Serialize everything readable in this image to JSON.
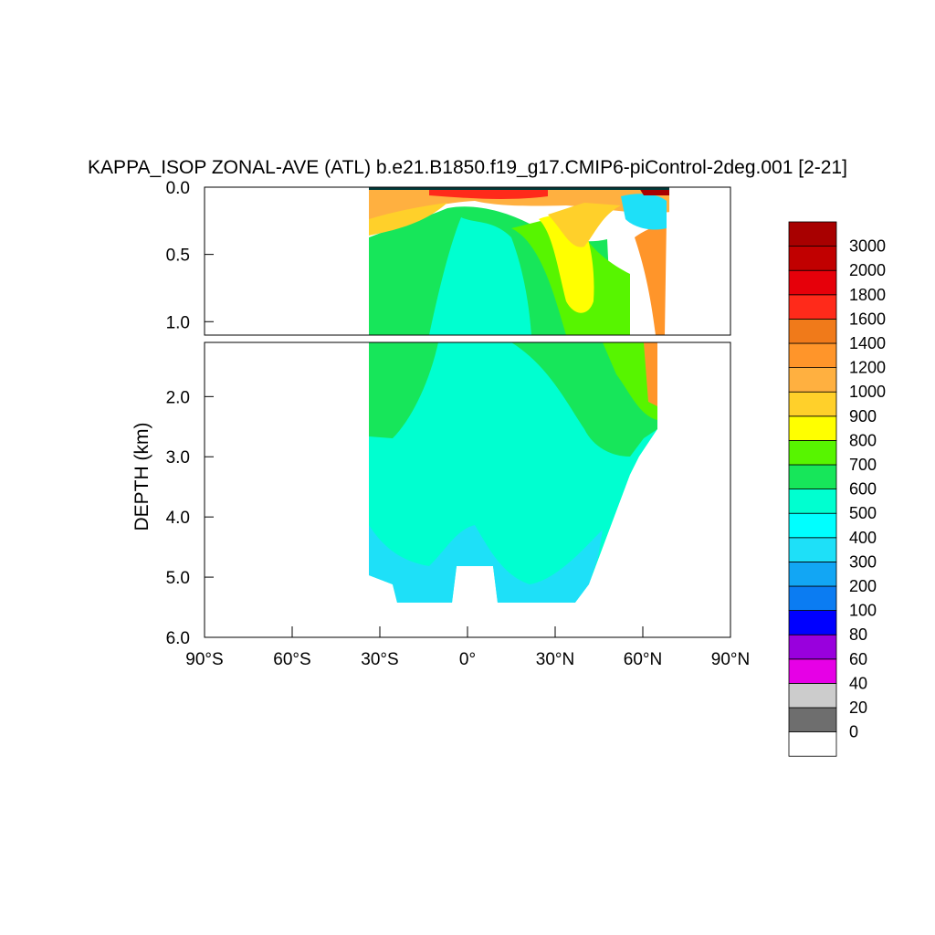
{
  "chart_data": {
    "type": "heatmap",
    "title": "KAPPA_ISOP ZONAL-AVE (ATL) b.e21.B1850.f19_g17.CMIP6-piControl-2deg.001 [2-21]",
    "ylabel": "DEPTH (km)",
    "xlim": [
      -90,
      90
    ],
    "upper_ylim": [
      0.0,
      1.1
    ],
    "lower_ylim": [
      1.1,
      6.0
    ],
    "x_ticks": [
      {
        "value": -90,
        "label": "90°S"
      },
      {
        "value": -60,
        "label": "60°S"
      },
      {
        "value": -30,
        "label": "30°S"
      },
      {
        "value": 0,
        "label": "0°"
      },
      {
        "value": 30,
        "label": "30°N"
      },
      {
        "value": 60,
        "label": "60°N"
      },
      {
        "value": 90,
        "label": "90°N"
      }
    ],
    "upper_y_ticks": [
      {
        "value": 0.0,
        "label": "0.0"
      },
      {
        "value": 0.5,
        "label": "0.5"
      },
      {
        "value": 1.0,
        "label": "1.0"
      }
    ],
    "lower_y_ticks": [
      {
        "value": 2.0,
        "label": "2.0"
      },
      {
        "value": 3.0,
        "label": "3.0"
      },
      {
        "value": 4.0,
        "label": "4.0"
      },
      {
        "value": 5.0,
        "label": "5.0"
      },
      {
        "value": 6.0,
        "label": "6.0"
      }
    ],
    "colorbar": {
      "levels": [
        "0",
        "20",
        "40",
        "60",
        "80",
        "100",
        "200",
        "300",
        "400",
        "500",
        "600",
        "700",
        "800",
        "900",
        "1000",
        "1200",
        "1400",
        "1600",
        "1800",
        "2000",
        "3000"
      ],
      "colors": [
        "#ffffff",
        "#6e6e6e",
        "#cccccc",
        "#e600e6",
        "#9900dd",
        "#0000ff",
        "#0b7cf2",
        "#12a6f4",
        "#1ee0f8",
        "#00ffff",
        "#00ffd0",
        "#17e65a",
        "#57f500",
        "#ffff00",
        "#ffd02a",
        "#ffb040",
        "#ff952a",
        "#f07a1a",
        "#ff2a1a",
        "#e6000a",
        "#c10000",
        "#a80000"
      ]
    },
    "regions": [
      {
        "level": "500-600",
        "x": [
          -34,
          70
        ],
        "depth": [
          1.1,
          5.4
        ],
        "note": "deep ocean interior"
      },
      {
        "level": "600-700",
        "x": [
          -34,
          70
        ],
        "depth": [
          0.2,
          3.0
        ],
        "note": "upper/intermediate water"
      },
      {
        "level": "1000-1400",
        "x": [
          -34,
          70
        ],
        "depth": [
          0.0,
          0.25
        ],
        "note": "near-surface"
      },
      {
        "level": "800-900",
        "x": [
          25,
          45
        ],
        "depth": [
          0.3,
          1.0
        ],
        "note": "subtropical north"
      },
      {
        "level": "1400-1600",
        "x": [
          60,
          66
        ],
        "depth": [
          0.5,
          2.2
        ],
        "note": "high-latitude north"
      },
      {
        "level": "300-500",
        "x": [
          50,
          68
        ],
        "depth": [
          0.05,
          0.4
        ],
        "note": "subpolar surface"
      },
      {
        "level": "1800-3000",
        "x": [
          -15,
          30
        ],
        "depth": [
          0.0,
          0.05
        ],
        "note": "surface maxima"
      }
    ]
  }
}
